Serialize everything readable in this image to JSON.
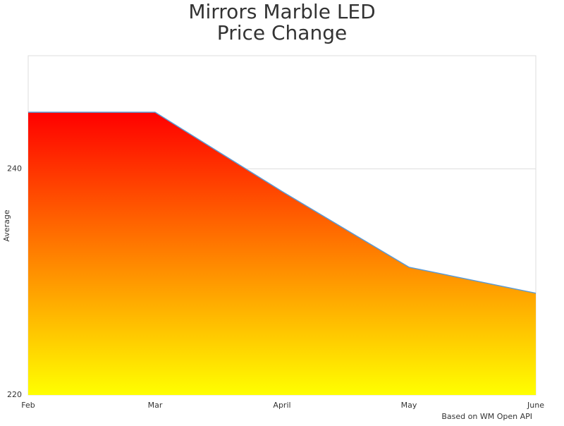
{
  "chart_data": {
    "type": "area",
    "title": [
      "Mirrors Marble LED",
      "Price Change"
    ],
    "y_label": "Average",
    "credit": "Based on WM Open API",
    "categories": [
      "Feb",
      "Mar",
      "April",
      "May",
      "June"
    ],
    "values": [
      245,
      245,
      238,
      231.3,
      229
    ],
    "ylim": [
      220,
      250
    ],
    "yticks": [
      220,
      240
    ],
    "grid": true,
    "gradient": [
      "#ff0000",
      "#ffff00"
    ],
    "line_color": "#5b9bd5"
  }
}
